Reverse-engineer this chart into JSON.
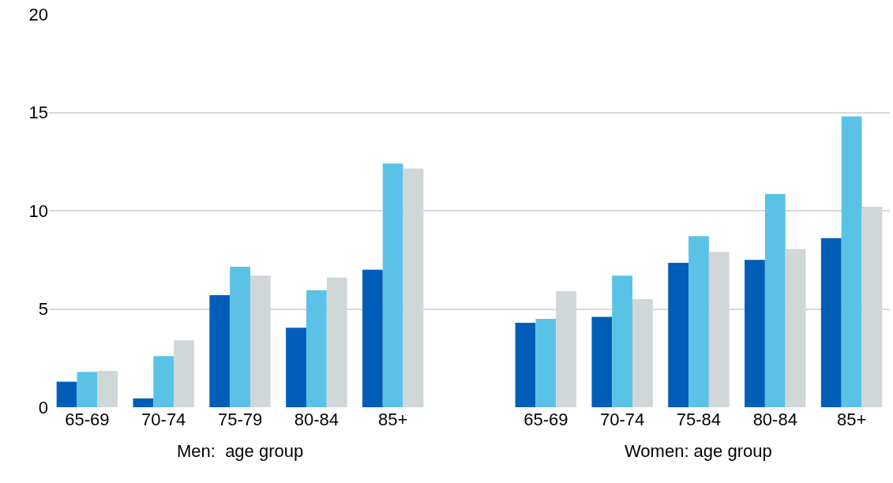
{
  "chart_data": {
    "type": "bar",
    "categories": [
      "65-69",
      "70-74",
      "75-79",
      "80-84",
      "85+",
      null,
      "65-69",
      "70-74",
      "75-84",
      "80-84",
      "85+"
    ],
    "series": [
      {
        "color": "#005eb8",
        "values": [
          1.3,
          0.45,
          5.7,
          4.05,
          7.0,
          null,
          4.3,
          4.6,
          7.35,
          7.5,
          8.6
        ]
      },
      {
        "color": "#5bc2e7",
        "values": [
          1.8,
          2.6,
          7.15,
          5.95,
          12.4,
          null,
          4.5,
          6.7,
          8.7,
          10.85,
          14.8
        ]
      },
      {
        "color": "#d0d7d9",
        "values": [
          1.85,
          3.4,
          6.7,
          6.6,
          12.15,
          null,
          5.9,
          5.5,
          7.9,
          8.05,
          10.2
        ]
      }
    ],
    "ylim": [
      0,
      20
    ],
    "yticks": [
      0,
      5,
      10,
      15,
      20
    ],
    "grid": "y",
    "annotations": [
      "Men:  age group",
      "Women: age group"
    ]
  }
}
